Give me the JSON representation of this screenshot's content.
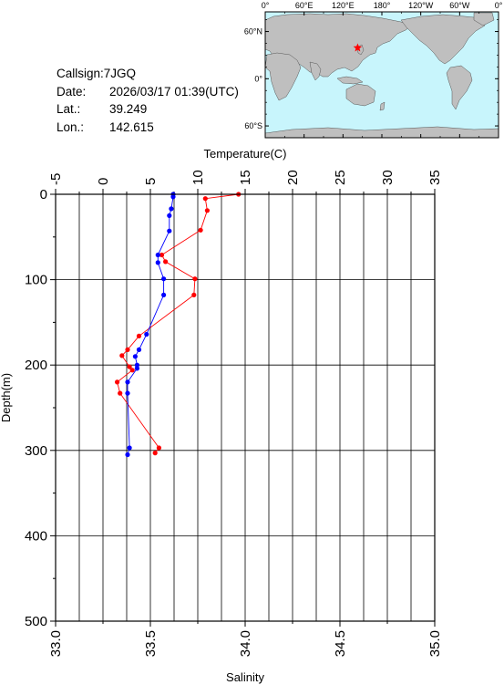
{
  "header": {
    "callsign": "Callsign:7JGQ",
    "date_label": "Date:",
    "date_value": "2026/03/17 01:39(UTC)",
    "lat_label": "Lat.:",
    "lat_value": "39.249",
    "lon_label": "Lon.:",
    "lon_value": "142.615"
  },
  "map": {
    "top_ticks": [
      "0°",
      "60°E",
      "120°E",
      "180°",
      "120°W",
      "60°W",
      "0°"
    ],
    "left_ticks": [
      "60°N",
      "0°",
      "60°S"
    ],
    "station": {
      "lat": 39.249,
      "lon": 142.615
    },
    "colors": {
      "ocean": "#c8f5fc",
      "land": "#bfbfbf",
      "marker": "#ff0000"
    }
  },
  "chart_data": {
    "type": "line",
    "top_axis": {
      "label": "Temperature(C)",
      "range": [
        -5,
        35
      ],
      "ticks": [
        "-5",
        "0",
        "5",
        "10",
        "15",
        "20",
        "25",
        "30",
        "35"
      ]
    },
    "bottom_axis": {
      "label": "Salinity",
      "range": [
        33.0,
        35.0
      ],
      "ticks": [
        "33.0",
        "33.5",
        "34.0",
        "34.5",
        "35.0"
      ]
    },
    "y_axis": {
      "label": "Depth(m)",
      "range": [
        0,
        500
      ],
      "inverted": true,
      "ticks": [
        "0",
        "100",
        "200",
        "300",
        "400",
        "500"
      ]
    },
    "grid": true,
    "series": [
      {
        "color": "#ff0000",
        "axis": "top",
        "points": [
          [
            14.3,
            0
          ],
          [
            10.8,
            5
          ],
          [
            11.0,
            19
          ],
          [
            10.3,
            42
          ],
          [
            6.2,
            71
          ],
          [
            6.6,
            79
          ],
          [
            9.7,
            99
          ],
          [
            9.6,
            118
          ],
          [
            3.8,
            166
          ],
          [
            2.6,
            182
          ],
          [
            2.0,
            189
          ],
          [
            2.8,
            202
          ],
          [
            3.1,
            206
          ],
          [
            1.5,
            220
          ],
          [
            1.8,
            233
          ],
          [
            5.9,
            297
          ],
          [
            5.5,
            303
          ]
        ]
      },
      {
        "color": "#0000ff",
        "axis": "bottom",
        "points": [
          [
            33.62,
            0
          ],
          [
            33.62,
            3
          ],
          [
            33.61,
            17
          ],
          [
            33.6,
            25
          ],
          [
            33.6,
            43
          ],
          [
            33.54,
            71
          ],
          [
            33.54,
            80
          ],
          [
            33.57,
            99
          ],
          [
            33.57,
            118
          ],
          [
            33.48,
            164
          ],
          [
            33.44,
            182
          ],
          [
            33.42,
            190
          ],
          [
            33.43,
            200
          ],
          [
            33.43,
            204
          ],
          [
            33.38,
            220
          ],
          [
            33.38,
            233
          ],
          [
            33.39,
            297
          ],
          [
            33.38,
            305
          ]
        ]
      }
    ]
  }
}
